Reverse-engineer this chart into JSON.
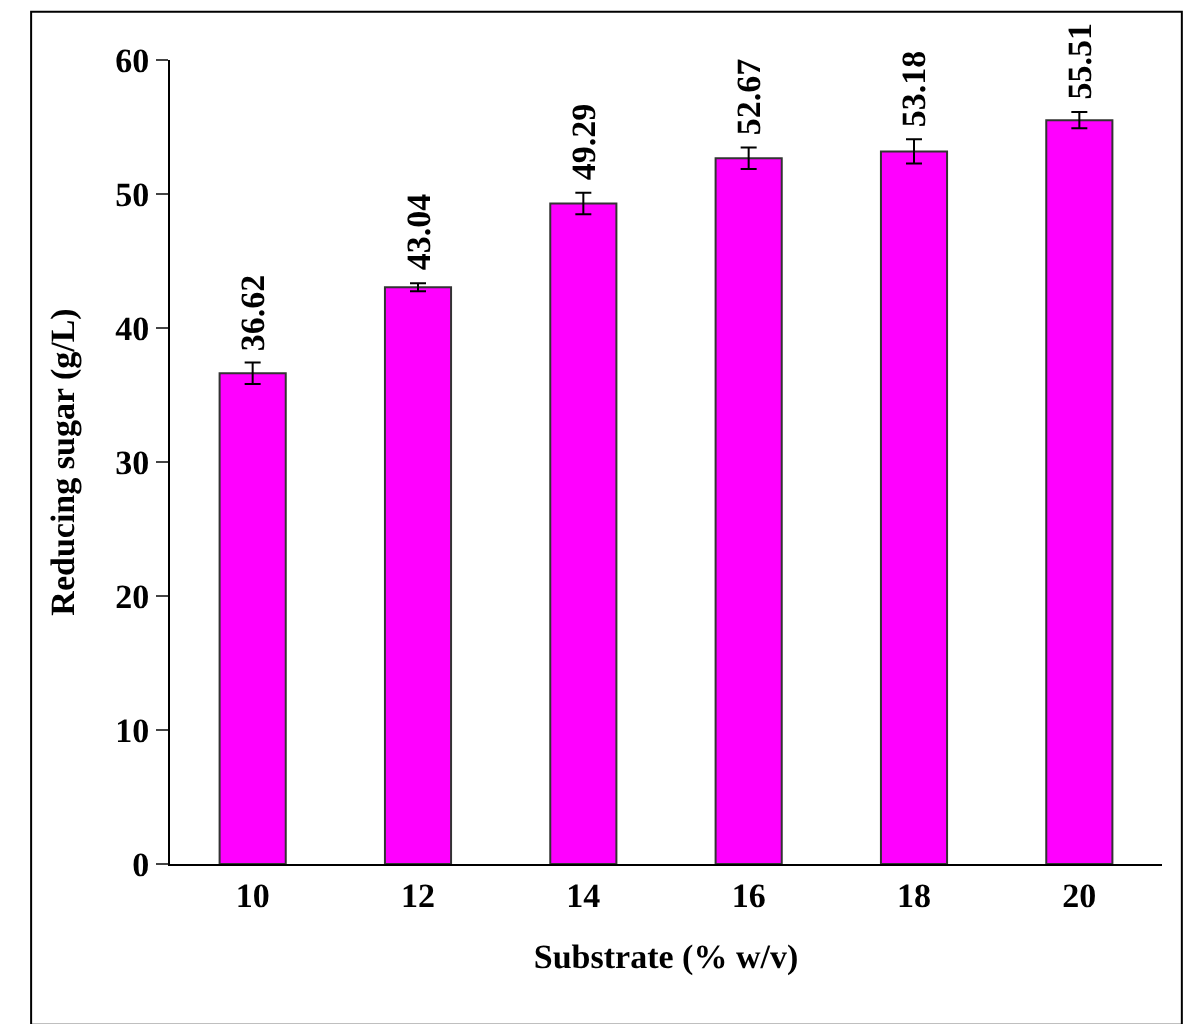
{
  "chart_data": {
    "type": "bar",
    "xlabel": "Substrate (% w/v)",
    "ylabel": "Reducing sugar (g/L)",
    "categories": [
      "10",
      "12",
      "14",
      "16",
      "18",
      "20"
    ],
    "values": [
      36.62,
      43.04,
      49.29,
      52.67,
      53.18,
      55.51
    ],
    "errors": [
      0.8,
      0.3,
      0.8,
      0.8,
      0.9,
      0.6
    ],
    "color": "#ff00ff",
    "ylim": [
      0,
      60
    ],
    "yticks": [
      0,
      10,
      20,
      30,
      40,
      50,
      60
    ],
    "data_labels": true
  }
}
